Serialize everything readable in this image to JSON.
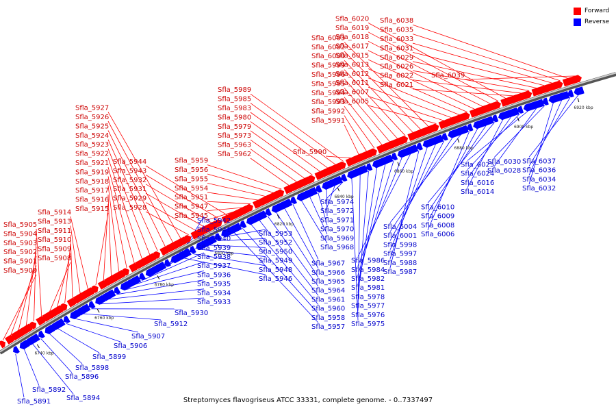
{
  "caption": "Streptomyces flavogriseus ATCC 33331, complete genome. - 0..7337497",
  "legend": {
    "forward_label": "Forward",
    "reverse_label": "Reverse",
    "forward_color": "#ff0000",
    "reverse_color": "#0000ff"
  },
  "ticks": [
    "6740 kbp",
    "6760 kbp",
    "6780 kbp",
    "6800 kbp",
    "6820 kbp",
    "6840 kbp",
    "6860 kbp",
    "6880 kbp",
    "6900 kbp",
    "6920 kbp"
  ],
  "forward_labels": [
    "Sfla_5900",
    "Sfla_5901",
    "Sfla_5902",
    "Sfla_5903",
    "Sfla_5904",
    "Sfla_5905",
    "Sfla_5908",
    "Sfla_5909",
    "Sfla_5910",
    "Sfla_5911",
    "Sfla_5913",
    "Sfla_5914",
    "Sfla_5915",
    "Sfla_5916",
    "Sfla_5917",
    "Sfla_5918",
    "Sfla_5919",
    "Sfla_5921",
    "Sfla_5922",
    "Sfla_5923",
    "Sfla_5924",
    "Sfla_5925",
    "Sfla_5926",
    "Sfla_5927",
    "Sfla_5928",
    "Sfla_5929",
    "Sfla_5931",
    "Sfla_5932",
    "Sfla_5943",
    "Sfla_5944",
    "Sfla_5945",
    "Sfla_5947",
    "Sfla_5951",
    "Sfla_5954",
    "Sfla_5955",
    "Sfla_5956",
    "Sfla_5959",
    "Sfla_5962",
    "Sfla_5963",
    "Sfla_5973",
    "Sfla_5979",
    "Sfla_5980",
    "Sfla_5983",
    "Sfla_5985",
    "Sfla_5989",
    "Sfla_5990",
    "Sfla_5991",
    "Sfla_5992",
    "Sfla_5993",
    "Sfla_5994",
    "Sfla_5995",
    "Sfla_5996",
    "Sfla_5999",
    "Sfla_6000",
    "Sfla_6002",
    "Sfla_6003",
    "Sfla_6005",
    "Sfla_6007",
    "Sfla_6011",
    "Sfla_6012",
    "Sfla_6013",
    "Sfla_6015",
    "Sfla_6017",
    "Sfla_6018",
    "Sfla_6019",
    "Sfla_6020",
    "Sfla_6021",
    "Sfla_6022",
    "Sfla_6026",
    "Sfla_6029",
    "Sfla_6031",
    "Sfla_6033",
    "Sfla_6035",
    "Sfla_6038",
    "Sfla_6039"
  ],
  "reverse_labels": [
    "Sfla_5891",
    "Sfla_5892",
    "Sfla_5894",
    "Sfla_5896",
    "Sfla_5898",
    "Sfla_5899",
    "Sfla_5906",
    "Sfla_5907",
    "Sfla_5912",
    "Sfla_5930",
    "Sfla_5933",
    "Sfla_5934",
    "Sfla_5935",
    "Sfla_5936",
    "Sfla_5937",
    "Sfla_5938",
    "Sfla_5939",
    "Sfla_5940",
    "Sfla_5941",
    "Sfla_5942",
    "Sfla_5946",
    "Sfla_5948",
    "Sfla_5949",
    "Sfla_5950",
    "Sfla_5952",
    "Sfla_5953",
    "Sfla_5957",
    "Sfla_5958",
    "Sfla_5960",
    "Sfla_5961",
    "Sfla_5964",
    "Sfla_5965",
    "Sfla_5966",
    "Sfla_5967",
    "Sfla_5968",
    "Sfla_5969",
    "Sfla_5970",
    "Sfla_5971",
    "Sfla_5972",
    "Sfla_5974",
    "Sfla_5975",
    "Sfla_5976",
    "Sfla_5977",
    "Sfla_5978",
    "Sfla_5981",
    "Sfla_5982",
    "Sfla_5984",
    "Sfla_5986",
    "Sfla_5987",
    "Sfla_5988",
    "Sfla_5997",
    "Sfla_5998",
    "Sfla_6001",
    "Sfla_6004",
    "Sfla_6006",
    "Sfla_6008",
    "Sfla_6009",
    "Sfla_6010",
    "Sfla_6014",
    "Sfla_6016",
    "Sfla_6024",
    "Sfla_6025",
    "Sfla_6028",
    "Sfla_6030",
    "Sfla_6032",
    "Sfla_6034",
    "Sfla_6036",
    "Sfla_6037"
  ]
}
